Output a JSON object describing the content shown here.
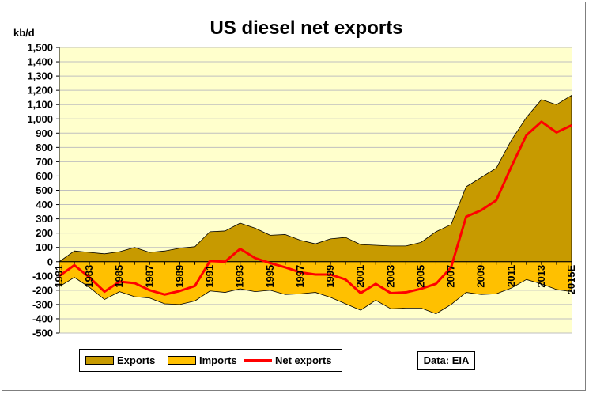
{
  "chart_data": {
    "type": "area",
    "title": "US diesel net exports",
    "ylabel": "kb/d",
    "ylim": [
      -500,
      1500
    ],
    "yticks": [
      -500,
      -400,
      -300,
      -200,
      -100,
      0,
      100,
      200,
      300,
      400,
      500,
      600,
      700,
      800,
      900,
      1000,
      1100,
      1200,
      1300,
      1400,
      1500
    ],
    "ytick_labels": [
      "-500",
      "-400",
      "-300",
      "-200",
      "-100",
      "0",
      "100",
      "200",
      "300",
      "400",
      "500",
      "600",
      "700",
      "800",
      "900",
      "1,000",
      "1,100",
      "1,200",
      "1,300",
      "1,400",
      "1,500"
    ],
    "categories": [
      "1981",
      "1982",
      "1983",
      "1984",
      "1985",
      "1986",
      "1987",
      "1988",
      "1989",
      "1990",
      "1991",
      "1992",
      "1993",
      "1994",
      "1995",
      "1996",
      "1997",
      "1998",
      "1999",
      "2000",
      "2001",
      "2002",
      "2003",
      "2004",
      "2005",
      "2006",
      "2007",
      "2008",
      "2009",
      "2010",
      "2011",
      "2012",
      "2013",
      "2014",
      "2015E"
    ],
    "xtick_labels": [
      "1981",
      "1983",
      "1985",
      "1987",
      "1989",
      "1991",
      "1993",
      "1995",
      "1997",
      "1999",
      "2001",
      "2003",
      "2005",
      "2007",
      "2009",
      "2011",
      "2013",
      "2015E"
    ],
    "series": [
      {
        "name": "Exports",
        "type": "area",
        "color": "#c79a00",
        "values": [
          0,
          75,
          65,
          55,
          70,
          100,
          65,
          75,
          95,
          105,
          210,
          215,
          270,
          235,
          185,
          190,
          150,
          125,
          160,
          170,
          120,
          115,
          110,
          110,
          135,
          210,
          260,
          525,
          590,
          655,
          850,
          1010,
          1135,
          1100,
          1165
        ]
      },
      {
        "name": "Imports",
        "type": "area",
        "color": "#ffc000",
        "values": [
          -175,
          -110,
          -180,
          -265,
          -210,
          -245,
          -255,
          -295,
          -300,
          -275,
          -205,
          -215,
          -190,
          -210,
          -200,
          -230,
          -225,
          -215,
          -250,
          -295,
          -340,
          -270,
          -330,
          -325,
          -325,
          -365,
          -300,
          -215,
          -230,
          -225,
          -185,
          -125,
          -155,
          -195,
          -210
        ]
      },
      {
        "name": "Net exports",
        "type": "line",
        "color": "#ff0000",
        "values": [
          -100,
          -25,
          -110,
          -210,
          -140,
          -150,
          -200,
          -230,
          -205,
          -170,
          5,
          0,
          90,
          25,
          -10,
          -40,
          -75,
          -90,
          -90,
          -125,
          -220,
          -155,
          -220,
          -215,
          -190,
          -155,
          -40,
          315,
          360,
          430,
          665,
          885,
          980,
          905,
          955
        ]
      }
    ],
    "legend": "bottom",
    "grid": true
  },
  "source_label": "Data: EIA"
}
